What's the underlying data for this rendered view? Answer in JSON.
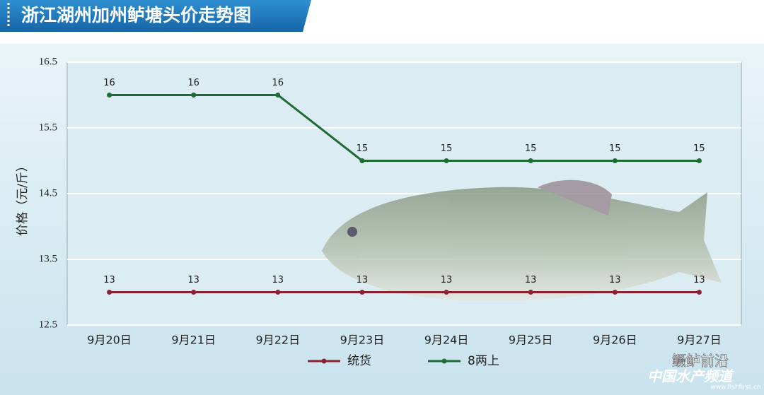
{
  "chart_data": {
    "type": "line",
    "title": "浙江湖州加州鲈塘头价走势图",
    "y_label": "价格（元/斤）",
    "categories": [
      "9月20日",
      "9月21日",
      "9月22日",
      "9月23日",
      "9月24日",
      "9月25日",
      "9月26日",
      "9月27日"
    ],
    "series": [
      {
        "name": "统货",
        "color": "#8b2232",
        "values": [
          13,
          13,
          13,
          13,
          13,
          13,
          13,
          13
        ]
      },
      {
        "name": "8两上",
        "color": "#1e6b35",
        "values": [
          16,
          16,
          16,
          15,
          15,
          15,
          15,
          15
        ]
      }
    ],
    "ylim": [
      12.5,
      16.5
    ],
    "yticks": [
      12.5,
      13.5,
      14.5,
      15.5,
      16.5
    ],
    "grid": true,
    "legend": "bottom"
  },
  "watermark": [
    "鳜鲈前沿",
    "中国水产频道",
    "www.fishfirst.cn"
  ]
}
